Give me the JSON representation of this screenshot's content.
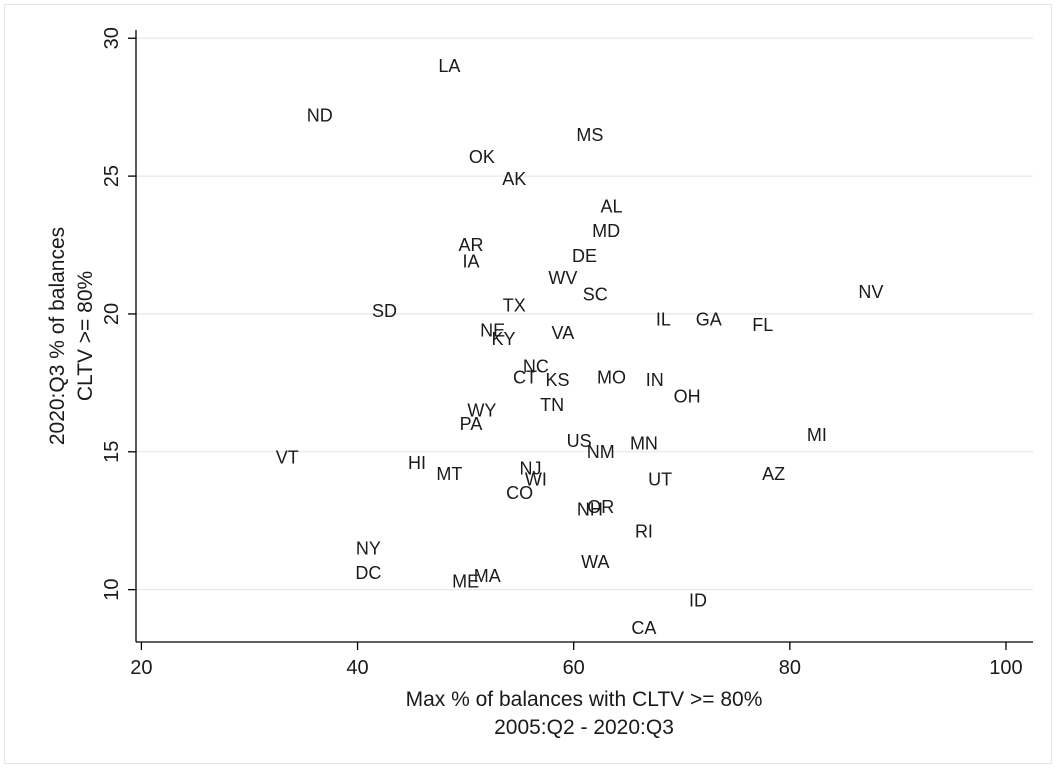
{
  "chart_data": {
    "type": "scatter",
    "xlabel": [
      "Max % of balances with CLTV >= 80%",
      "2005:Q2 - 2020:Q3"
    ],
    "ylabel": [
      "2020:Q3 % of balances",
      "CLTV >= 80%"
    ],
    "xlim": [
      19.5,
      102.5
    ],
    "ylim": [
      8.1,
      30.3
    ],
    "xticks": [
      20,
      40,
      60,
      80,
      100
    ],
    "yticks": [
      10,
      15,
      20,
      25,
      30
    ],
    "grid": "horizontal",
    "marker": "label-only",
    "points": [
      {
        "label": "LA",
        "x": 48.5,
        "y": 29.0
      },
      {
        "label": "ND",
        "x": 36.5,
        "y": 27.2
      },
      {
        "label": "MS",
        "x": 61.5,
        "y": 26.5
      },
      {
        "label": "OK",
        "x": 51.5,
        "y": 25.7
      },
      {
        "label": "AK",
        "x": 54.5,
        "y": 24.9
      },
      {
        "label": "AL",
        "x": 63.5,
        "y": 23.9
      },
      {
        "label": "MD",
        "x": 63.0,
        "y": 23.0
      },
      {
        "label": "AR",
        "x": 50.5,
        "y": 22.5
      },
      {
        "label": "IA",
        "x": 50.5,
        "y": 21.9
      },
      {
        "label": "DE",
        "x": 61.0,
        "y": 22.1
      },
      {
        "label": "WV",
        "x": 59.0,
        "y": 21.3
      },
      {
        "label": "SC",
        "x": 62.0,
        "y": 20.7
      },
      {
        "label": "NV",
        "x": 87.5,
        "y": 20.8
      },
      {
        "label": "SD",
        "x": 42.5,
        "y": 20.1
      },
      {
        "label": "TX",
        "x": 54.5,
        "y": 20.3
      },
      {
        "label": "IL",
        "x": 68.3,
        "y": 19.8
      },
      {
        "label": "GA",
        "x": 72.5,
        "y": 19.8
      },
      {
        "label": "FL",
        "x": 77.5,
        "y": 19.6
      },
      {
        "label": "NE",
        "x": 52.5,
        "y": 19.4
      },
      {
        "label": "KY",
        "x": 53.5,
        "y": 19.1
      },
      {
        "label": "VA",
        "x": 59.0,
        "y": 19.3
      },
      {
        "label": "NC",
        "x": 56.5,
        "y": 18.1
      },
      {
        "label": "CT",
        "x": 55.5,
        "y": 17.7
      },
      {
        "label": "KS",
        "x": 58.5,
        "y": 17.6
      },
      {
        "label": "MO",
        "x": 63.5,
        "y": 17.7
      },
      {
        "label": "IN",
        "x": 67.5,
        "y": 17.6
      },
      {
        "label": "OH",
        "x": 70.5,
        "y": 17.0
      },
      {
        "label": "TN",
        "x": 58.0,
        "y": 16.7
      },
      {
        "label": "WY",
        "x": 51.5,
        "y": 16.5
      },
      {
        "label": "PA",
        "x": 50.5,
        "y": 16.0
      },
      {
        "label": "US",
        "x": 60.5,
        "y": 15.4
      },
      {
        "label": "NM",
        "x": 62.5,
        "y": 15.0
      },
      {
        "label": "MN",
        "x": 66.5,
        "y": 15.3
      },
      {
        "label": "MI",
        "x": 82.5,
        "y": 15.6
      },
      {
        "label": "VT",
        "x": 33.5,
        "y": 14.8
      },
      {
        "label": "HI",
        "x": 45.5,
        "y": 14.6
      },
      {
        "label": "MT",
        "x": 48.5,
        "y": 14.2
      },
      {
        "label": "NJ",
        "x": 56.0,
        "y": 14.4
      },
      {
        "label": "WI",
        "x": 56.5,
        "y": 14.0
      },
      {
        "label": "UT",
        "x": 68.0,
        "y": 14.0
      },
      {
        "label": "AZ",
        "x": 78.5,
        "y": 14.2
      },
      {
        "label": "CO",
        "x": 55.0,
        "y": 13.5
      },
      {
        "label": "NH",
        "x": 61.5,
        "y": 12.9
      },
      {
        "label": "OR",
        "x": 62.5,
        "y": 13.0
      },
      {
        "label": "RI",
        "x": 66.5,
        "y": 12.1
      },
      {
        "label": "NY",
        "x": 41.0,
        "y": 11.5
      },
      {
        "label": "DC",
        "x": 41.0,
        "y": 10.6
      },
      {
        "label": "WA",
        "x": 62.0,
        "y": 11.0
      },
      {
        "label": "ME",
        "x": 50.0,
        "y": 10.3
      },
      {
        "label": "MA",
        "x": 52.0,
        "y": 10.5
      },
      {
        "label": "ID",
        "x": 71.5,
        "y": 9.6
      },
      {
        "label": "CA",
        "x": 66.5,
        "y": 8.6
      }
    ]
  }
}
